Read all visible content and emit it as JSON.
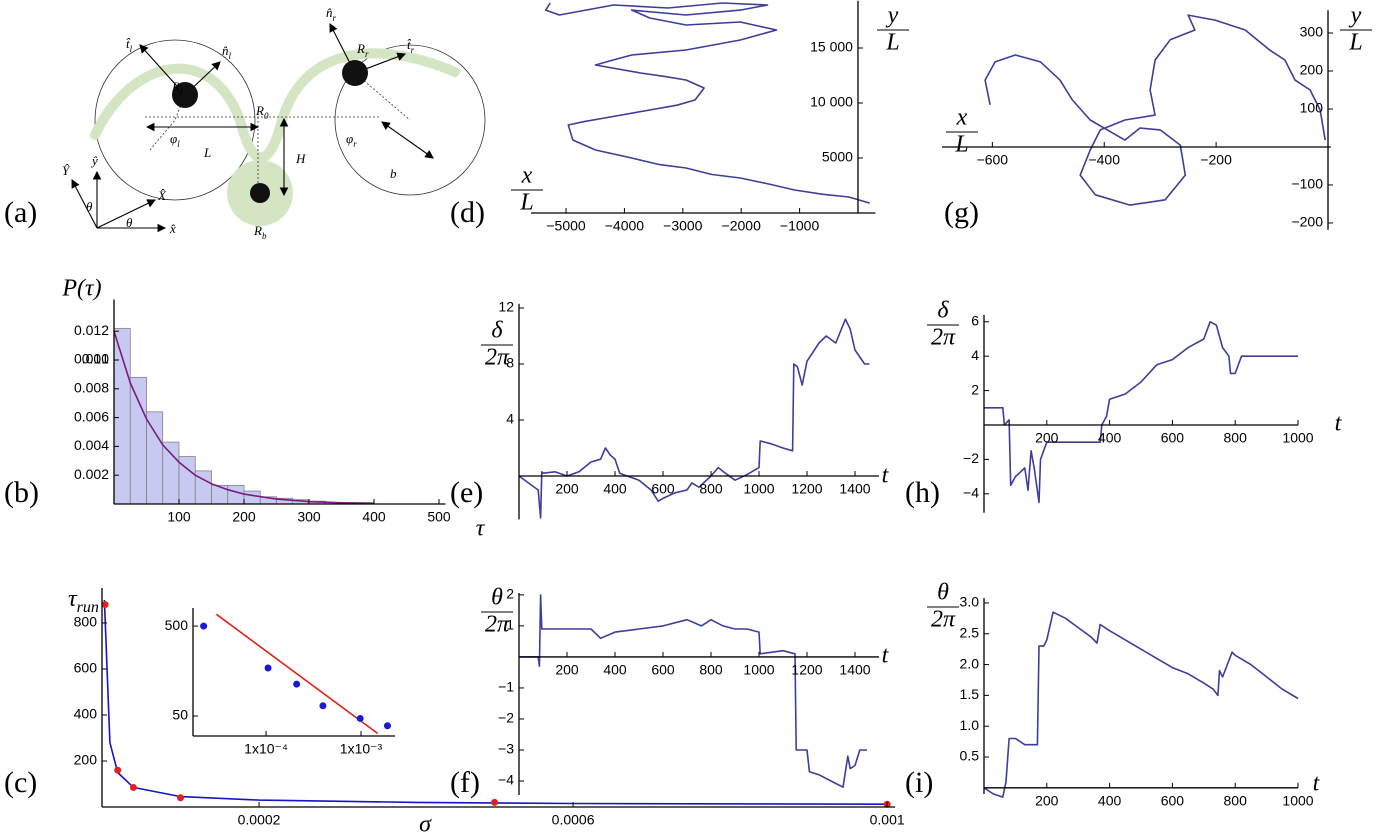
{
  "diagram": {
    "panel_label": "(a)",
    "labels": [
      {
        "base": "t̂",
        "sub": "l"
      },
      {
        "base": "n̂",
        "sub": "l"
      },
      {
        "base": "R",
        "sub": "l"
      },
      {
        "base": "n̂",
        "sub": "r"
      },
      {
        "base": "R",
        "sub": "r"
      },
      {
        "base": "t̂",
        "sub": "r"
      },
      {
        "base": "φ",
        "sub": "l"
      },
      {
        "base": "R",
        "sub": "0"
      },
      {
        "base": "φ",
        "sub": "r"
      },
      {
        "base": "L"
      },
      {
        "base": "H"
      },
      {
        "base": "b"
      },
      {
        "base": "R",
        "sub": "b"
      },
      {
        "base": "Ŷ"
      },
      {
        "base": "ŷ"
      },
      {
        "base": "X̂"
      },
      {
        "base": "x̂"
      },
      {
        "base": "θ"
      },
      {
        "base": "θ"
      }
    ]
  },
  "chart_data": [
    {
      "type": "histogram",
      "panel_label": "(b)",
      "ylabel": "P(τ)",
      "xlabel": "τ",
      "xlim": [
        0,
        510
      ],
      "ylim": [
        0,
        0.0142
      ],
      "xticks": [
        100,
        200,
        300,
        400,
        500
      ],
      "yticks": [
        0.002,
        0.004,
        0.006,
        0.008,
        0.01,
        {
          "value": 0.01,
          "label": "0.010"
        },
        0.012
      ],
      "bins": [
        0,
        25,
        50,
        75,
        100,
        125,
        150,
        175,
        200,
        225,
        250,
        275,
        300,
        325,
        350,
        375,
        400
      ],
      "values": [
        0.0122,
        0.0088,
        0.0064,
        0.0043,
        0.0033,
        0.0023,
        0.0013,
        0.0013,
        0.0009,
        0.0005,
        0.0004,
        0.0003,
        0.0002,
        0.0001,
        0.0001,
        0.0001
      ],
      "color": "#c7c9f0",
      "edge_color": "#777777",
      "series": [
        {
          "type": "line",
          "color": "#7a1c7e",
          "x": [
            0,
            25,
            50,
            75,
            100,
            125,
            150,
            175,
            200,
            250,
            300,
            350,
            400
          ],
          "values": [
            0.012,
            0.0084,
            0.0059,
            0.0041,
            0.0029,
            0.002,
            0.0014,
            0.00099,
            0.00069,
            0.00034,
            0.00017,
            8e-05,
            4e-05
          ]
        }
      ]
    },
    {
      "type": "scatter",
      "panel_label": "(c)",
      "ylabel": {
        "base": "τ",
        "sub": "run"
      },
      "xlabel": "σ",
      "xlim": [
        0,
        0.00101
      ],
      "ylim": [
        0,
        952
      ],
      "xticks": [
        0.0002,
        0.0006,
        0.001
      ],
      "yticks": [
        200,
        400,
        600,
        800
      ],
      "series": [
        {
          "type": "line",
          "color": "#1414c8",
          "x": [
            3e-06,
            1e-05,
            2e-05,
            4e-05,
            0.0001,
            0.0002,
            0.0004,
            0.0006,
            0.001
          ],
          "values": [
            900,
            280,
            150,
            85,
            45,
            30,
            20,
            15,
            12
          ]
        },
        {
          "type": "scatter",
          "color": "#e0201b",
          "x": [
            4e-06,
            2e-05,
            4e-05,
            0.0001,
            0.0005,
            0.001
          ],
          "values": [
            880,
            160,
            85,
            40,
            20,
            12
          ]
        }
      ],
      "inset": {
        "xscale": "log",
        "yscale": "log",
        "xlim": [
          1.7e-05,
          0.00228
        ],
        "ylim": [
          30,
          794
        ],
        "xticks": [
          {
            "value": 0.0001,
            "label": "1x10⁻⁴"
          },
          {
            "value": 0.001,
            "label": "1x10⁻³"
          }
        ],
        "yticks": [
          50,
          500
        ],
        "series": [
          {
            "type": "line",
            "color": "#e0201b",
            "x": [
              3e-05,
              0.0015
            ],
            "values": [
              676,
              32
            ]
          },
          {
            "type": "scatter",
            "color": "#1a1ad6",
            "x": [
              2.2e-05,
              0.000105,
              0.00021,
              0.000397,
              0.00098,
              0.0019
            ],
            "values": [
              500,
              171,
              113,
              65,
              47,
              39
            ]
          }
        ]
      }
    },
    {
      "type": "line",
      "panel_label": "(d)",
      "xlabel": {
        "num": "x",
        "den": "L"
      },
      "ylabel": {
        "num": "y",
        "den": "L"
      },
      "xlim": [
        -5600,
        300
      ],
      "ylim": [
        0,
        19300
      ],
      "xticks": [
        {
          "value": -5000,
          "label": "−5000"
        },
        {
          "value": -4000,
          "label": "−4000"
        },
        {
          "value": -3000,
          "label": "−3000"
        },
        {
          "value": -2000,
          "label": "−2000"
        },
        {
          "value": -1000,
          "label": "−1000"
        }
      ],
      "yticks": [
        5000,
        {
          "value": 10000,
          "label": "10 000"
        },
        {
          "value": 15000,
          "label": "15 000"
        }
      ],
      "series": [
        {
          "type": "line",
          "color": "#3c3f9a",
          "x": [
            200,
            -155,
            -600,
            -1085,
            -1500,
            -2016,
            -2500,
            -2946,
            -3400,
            -3876,
            -4496,
            -4884,
            -4961,
            -4700,
            -4341,
            -3566,
            -3100,
            -2791,
            -2636,
            -2946,
            -3300,
            -3721,
            -4496,
            -4200,
            -3876,
            -2946,
            -2016,
            -1395,
            -2016,
            -2946,
            -3566,
            -3876,
            -2946,
            -2016,
            -1550,
            -2326,
            -3256,
            -4186,
            -5116,
            -5349,
            -5271
          ],
          "values": [
            900,
            1455,
            1700,
            2090,
            2600,
            3180,
            3500,
            4090,
            4400,
            5000,
            5730,
            6640,
            8000,
            8300,
            8640,
            9360,
            9800,
            10270,
            11360,
            12090,
            12400,
            12730,
            13450,
            13900,
            14360,
            14820,
            15730,
            16640,
            17360,
            17090,
            17730,
            18450,
            18000,
            18450,
            18910,
            19090,
            18640,
            18910,
            18000,
            18450,
            19090
          ]
        }
      ]
    },
    {
      "type": "line",
      "panel_label": "(e)",
      "xlabel": "t",
      "ylabel": {
        "num": "δ",
        "den": "2π"
      },
      "xlim": [
        0,
        1500
      ],
      "ylim": [
        -3.1,
        12.3
      ],
      "xticks": [
        200,
        400,
        600,
        800,
        1000,
        1200,
        1400
      ],
      "yticks": [
        4,
        8,
        12
      ],
      "series": [
        {
          "type": "line",
          "color": "#3c3f9a",
          "x": [
            0,
            80,
            90,
            95,
            100,
            150,
            200,
            250,
            300,
            340,
            360,
            380,
            400,
            420,
            450,
            500,
            550,
            580,
            600,
            650,
            700,
            720,
            750,
            800,
            830,
            860,
            900,
            950,
            1000,
            1005,
            1050,
            1100,
            1140,
            1145,
            1160,
            1180,
            1200,
            1250,
            1280,
            1320,
            1360,
            1380,
            1400,
            1420,
            1440,
            1460
          ],
          "values": [
            0,
            -1,
            -3,
            0.3,
            0.2,
            0.3,
            0,
            0.3,
            1,
            1.2,
            2,
            1.5,
            1.2,
            0.2,
            0,
            -0.3,
            -1,
            -1.8,
            -1.6,
            -1.2,
            -1,
            -0.5,
            -0.8,
            0,
            0.6,
            0.2,
            -0.3,
            0.1,
            0.6,
            2.5,
            2.3,
            2,
            1.8,
            8,
            7.8,
            6.5,
            8.2,
            9.5,
            10,
            9.5,
            11.2,
            10.5,
            9,
            8.5,
            8,
            8
          ]
        }
      ]
    },
    {
      "type": "line",
      "panel_label": "(f)",
      "xlabel": "t",
      "ylabel": {
        "num": "θ",
        "den": "2π"
      },
      "xlim": [
        0,
        1500
      ],
      "ylim": [
        -4.45,
        2.06
      ],
      "xticks": [
        200,
        400,
        600,
        800,
        1000,
        1200,
        1400
      ],
      "yticks": [
        {
          "value": -4,
          "label": "−4"
        },
        {
          "value": -3,
          "label": "−3"
        },
        {
          "value": -2,
          "label": "−2"
        },
        {
          "value": -1,
          "label": "−1"
        },
        1,
        2
      ],
      "series": [
        {
          "type": "line",
          "color": "#3c3f9a",
          "x": [
            0,
            70,
            80,
            85,
            90,
            95,
            100,
            200,
            300,
            340,
            400,
            500,
            600,
            700,
            760,
            800,
            850,
            900,
            950,
            1000,
            1005,
            1100,
            1150,
            1155,
            1200,
            1210,
            1250,
            1300,
            1350,
            1370,
            1380,
            1400,
            1420,
            1450
          ],
          "values": [
            0,
            0,
            0,
            -0.3,
            2,
            0.9,
            0.9,
            0.9,
            0.9,
            0.6,
            0.8,
            0.9,
            1,
            1.2,
            1,
            1.2,
            1,
            0.9,
            0.9,
            0.8,
            0.1,
            0.2,
            0.1,
            -3,
            -3,
            -3.7,
            -3.8,
            -4,
            -4.2,
            -3.2,
            -3.6,
            -3.5,
            -3,
            -3
          ]
        }
      ]
    },
    {
      "type": "line",
      "panel_label": "(g)",
      "xlabel": {
        "num": "x",
        "den": "L"
      },
      "ylabel": {
        "num": "y",
        "den": "L"
      },
      "xlim": [
        -690,
        5
      ],
      "ylim": [
        -218,
        360
      ],
      "xticks": [
        {
          "value": -600,
          "label": "−600"
        },
        {
          "value": -400,
          "label": "−400"
        },
        {
          "value": -200,
          "label": "−200"
        }
      ],
      "yticks": [
        {
          "value": -200,
          "label": "−200"
        },
        {
          "value": -100,
          "label": "−100"
        },
        100,
        200,
        300
      ],
      "series": [
        {
          "type": "line",
          "color": "#3c3f9a",
          "x": [
            -5,
            -14,
            -32,
            -59,
            -77,
            -104,
            -148,
            -202,
            -250,
            -238,
            -282,
            -309,
            -318,
            -309,
            -363,
            -407,
            -425,
            -443,
            -416,
            -354,
            -291,
            -255,
            -264,
            -300,
            -336,
            -363,
            -425,
            -457,
            -479,
            -514,
            -559,
            -595,
            -613,
            -604
          ],
          "values": [
            18,
            97,
            150,
            176,
            229,
            255,
            308,
            334,
            347,
            308,
            282,
            229,
            150,
            84,
            71,
            45,
            -8,
            -74,
            -126,
            -153,
            -139,
            -74,
            5,
            45,
            50,
            18,
            71,
            124,
            176,
            224,
            242,
            224,
            176,
            111
          ]
        }
      ]
    },
    {
      "type": "line",
      "panel_label": "(h)",
      "xlabel": "t",
      "ylabel": {
        "num": "δ",
        "den": "2π"
      },
      "xlim": [
        0,
        1000
      ],
      "ylim": [
        -5.1,
        6.4
      ],
      "xticks": [
        200,
        400,
        600,
        800,
        1000
      ],
      "yticks": [
        {
          "value": -4,
          "label": "−4"
        },
        {
          "value": -2,
          "label": "−2"
        },
        2,
        4,
        6
      ],
      "series": [
        {
          "type": "line",
          "color": "#3c3f9a",
          "x": [
            0,
            60,
            65,
            80,
            85,
            100,
            130,
            140,
            150,
            160,
            175,
            180,
            200,
            250,
            300,
            370,
            375,
            390,
            400,
            450,
            500,
            550,
            600,
            650,
            700,
            720,
            740,
            760,
            780,
            785,
            800,
            820,
            900,
            1000
          ],
          "values": [
            1,
            1,
            0,
            0.3,
            -3.5,
            -3,
            -2.5,
            -3.8,
            -1.5,
            -2.5,
            -4.5,
            -2,
            -1,
            -1,
            -1,
            -1,
            0,
            0.5,
            1.5,
            1.8,
            2.5,
            3.5,
            3.8,
            4.5,
            5,
            6,
            5.8,
            4.5,
            4,
            3,
            3,
            4,
            4,
            4
          ]
        }
      ]
    },
    {
      "type": "line",
      "panel_label": "(i)",
      "xlabel": "t",
      "ylabel": {
        "num": "θ",
        "den": "2π"
      },
      "xlim": [
        0,
        1000
      ],
      "ylim": [
        -0.1,
        3.08
      ],
      "xticks": [
        200,
        400,
        600,
        800,
        1000
      ],
      "yticks": [
        0.5,
        {
          "value": 1,
          "label": "1.0"
        },
        1.5,
        {
          "value": 2,
          "label": "2.0"
        },
        2.5,
        {
          "value": 3,
          "label": "3.0"
        }
      ],
      "series": [
        {
          "type": "line",
          "color": "#3c3f9a",
          "x": [
            0,
            30,
            60,
            70,
            80,
            100,
            130,
            170,
            175,
            190,
            200,
            220,
            260,
            300,
            340,
            360,
            370,
            400,
            450,
            500,
            550,
            600,
            650,
            700,
            730,
            745,
            750,
            760,
            790,
            800,
            850,
            900,
            950,
            1000
          ],
          "values": [
            0,
            -0.1,
            -0.15,
            0.1,
            0.8,
            0.8,
            0.7,
            0.7,
            2.3,
            2.3,
            2.4,
            2.85,
            2.75,
            2.6,
            2.45,
            2.35,
            2.65,
            2.55,
            2.4,
            2.25,
            2.1,
            1.95,
            1.85,
            1.7,
            1.6,
            1.5,
            1.9,
            1.8,
            2.2,
            2.15,
            2,
            1.8,
            1.6,
            1.45
          ]
        }
      ]
    }
  ]
}
